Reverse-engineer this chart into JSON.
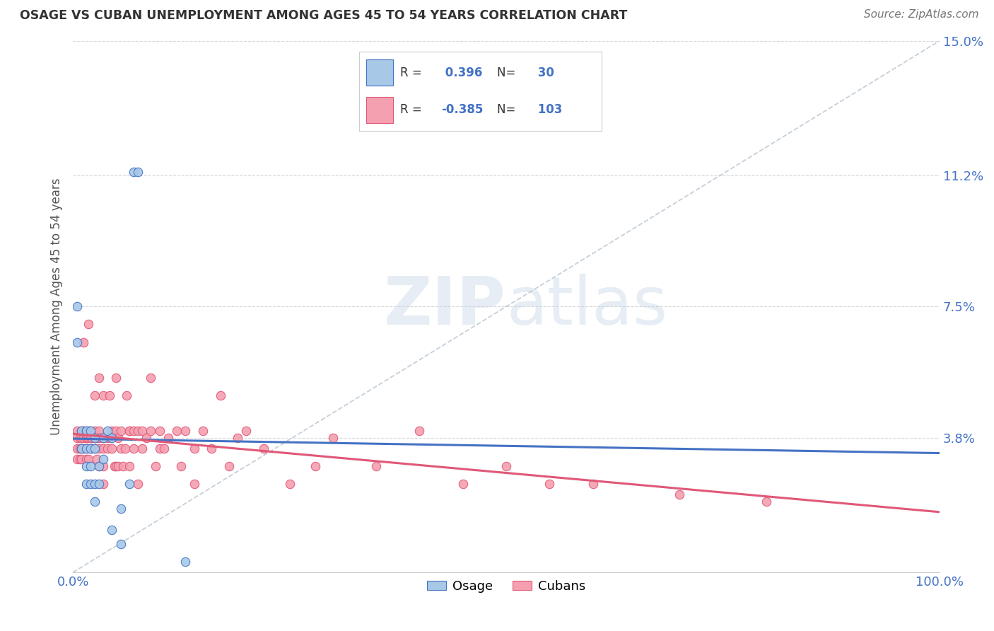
{
  "title": "OSAGE VS CUBAN UNEMPLOYMENT AMONG AGES 45 TO 54 YEARS CORRELATION CHART",
  "source": "Source: ZipAtlas.com",
  "ylabel": "Unemployment Among Ages 45 to 54 years",
  "xlim": [
    0,
    100
  ],
  "ylim": [
    0,
    15
  ],
  "xtick_positions": [
    0,
    10,
    20,
    30,
    40,
    50,
    60,
    70,
    80,
    90,
    100
  ],
  "xticklabels": [
    "0.0%",
    "",
    "",
    "",
    "",
    "",
    "",
    "",
    "",
    "",
    "100.0%"
  ],
  "ytick_positions": [
    0,
    3.8,
    7.5,
    11.2,
    15.0
  ],
  "yticklabels": [
    "",
    "3.8%",
    "7.5%",
    "11.2%",
    "15.0%"
  ],
  "osage_R": 0.396,
  "osage_N": 30,
  "cubans_R": -0.385,
  "cubans_N": 103,
  "osage_color": "#a8c8e8",
  "cubans_color": "#f4a0b0",
  "osage_edge_color": "#4472c4",
  "cubans_edge_color": "#e05878",
  "osage_line_color": "#4472c4",
  "cubans_line_color": "#e05878",
  "trend_line_color": "#b8c4d0",
  "background_color": "#ffffff",
  "watermark": "ZIPatlas",
  "osage_x": [
    0.5,
    0.5,
    1.0,
    1.0,
    1.5,
    1.5,
    1.5,
    1.5,
    1.5,
    2.0,
    2.0,
    2.0,
    2.0,
    2.5,
    2.5,
    2.5,
    2.5,
    3.0,
    3.0,
    3.5,
    3.5,
    4.0,
    4.5,
    4.5,
    5.5,
    5.5,
    6.5,
    7.0,
    7.5,
    13.0
  ],
  "osage_y": [
    7.5,
    6.5,
    4.0,
    3.5,
    4.0,
    4.0,
    3.5,
    3.0,
    2.5,
    4.0,
    3.5,
    3.0,
    2.5,
    3.8,
    3.5,
    2.5,
    2.0,
    3.0,
    2.5,
    3.8,
    3.2,
    4.0,
    3.8,
    1.2,
    1.8,
    0.8,
    2.5,
    11.3,
    11.3,
    0.3
  ],
  "cubans_x": [
    0.5,
    0.5,
    0.5,
    0.5,
    0.8,
    0.8,
    0.8,
    1.0,
    1.0,
    1.0,
    1.0,
    1.2,
    1.2,
    1.2,
    1.2,
    1.2,
    1.5,
    1.5,
    1.5,
    1.6,
    1.8,
    1.8,
    1.8,
    1.8,
    2.0,
    2.0,
    2.0,
    2.2,
    2.2,
    2.5,
    2.5,
    2.5,
    2.5,
    2.8,
    2.8,
    3.0,
    3.0,
    3.0,
    3.0,
    3.0,
    3.2,
    3.5,
    3.5,
    3.5,
    3.5,
    3.5,
    4.0,
    4.0,
    4.2,
    4.2,
    4.5,
    4.5,
    4.8,
    5.0,
    5.0,
    5.0,
    5.2,
    5.2,
    5.5,
    5.5,
    5.8,
    6.0,
    6.2,
    6.5,
    6.5,
    6.5,
    7.0,
    7.0,
    7.5,
    7.5,
    8.0,
    8.0,
    8.5,
    9.0,
    9.0,
    9.5,
    10.0,
    10.0,
    10.5,
    11.0,
    12.0,
    12.5,
    13.0,
    14.0,
    14.0,
    15.0,
    16.0,
    17.0,
    18.0,
    19.0,
    20.0,
    22.0,
    25.0,
    28.0,
    30.0,
    35.0,
    40.0,
    45.0,
    50.0,
    55.0,
    60.0,
    70.0,
    80.0
  ],
  "cubans_y": [
    4.0,
    3.8,
    3.5,
    3.2,
    3.8,
    3.5,
    3.2,
    4.0,
    3.8,
    3.5,
    3.2,
    4.0,
    6.5,
    4.0,
    3.8,
    3.5,
    3.8,
    3.5,
    3.2,
    3.8,
    7.0,
    4.0,
    3.8,
    3.2,
    3.8,
    3.5,
    4.0,
    3.8,
    3.5,
    5.0,
    4.0,
    3.8,
    3.5,
    3.8,
    3.2,
    5.5,
    4.0,
    3.8,
    3.5,
    3.0,
    3.8,
    5.0,
    3.8,
    3.5,
    3.0,
    2.5,
    3.8,
    3.5,
    5.0,
    3.8,
    3.5,
    4.0,
    3.0,
    5.5,
    4.0,
    3.0,
    3.8,
    3.0,
    4.0,
    3.5,
    3.0,
    3.5,
    5.0,
    4.0,
    3.0,
    4.0,
    4.0,
    3.5,
    2.5,
    4.0,
    4.0,
    3.5,
    3.8,
    5.5,
    4.0,
    3.0,
    3.5,
    4.0,
    3.5,
    3.8,
    4.0,
    3.0,
    4.0,
    3.5,
    2.5,
    4.0,
    3.5,
    5.0,
    3.0,
    3.8,
    4.0,
    3.5,
    2.5,
    3.0,
    3.8,
    3.0,
    4.0,
    2.5,
    3.0,
    2.5,
    2.5,
    2.2,
    2.0
  ]
}
